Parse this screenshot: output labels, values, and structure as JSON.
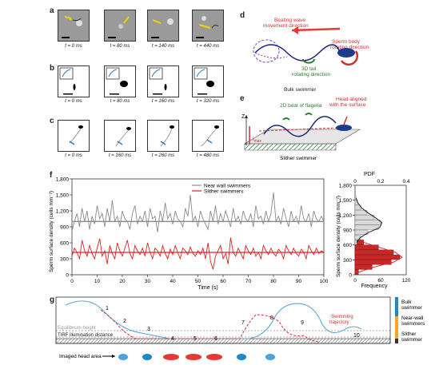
{
  "panels": {
    "a": "a",
    "b": "b",
    "c": "c",
    "d": "d",
    "e": "e",
    "f": "f",
    "g": "g"
  },
  "row_a": {
    "times": [
      "t = 0 ms",
      "t = 80 ms",
      "t = 140 ms",
      "t = 440 ms"
    ]
  },
  "row_b": {
    "times": [
      "t = 0 ms",
      "t = 80 ms",
      "t = 160 ms",
      "t = 320 ms"
    ]
  },
  "row_c": {
    "times": [
      "t = 0 ms",
      "t = 160 ms",
      "t = 260 ms",
      "t = 480 ms"
    ]
  },
  "panel_d": {
    "beating_wave": [
      "Beating wave",
      "movement direction"
    ],
    "body_rot": [
      "Sperm body",
      "rotating direction"
    ],
    "tail_rot": [
      "3D tail",
      "rotating direction"
    ]
  },
  "panel_e": {
    "bulk": "Bulk swimmer",
    "beat": "2D beat of flagella",
    "head_aligned": [
      "Head aligned",
      "with the surface"
    ],
    "slither": "Slither swimmer",
    "z_axis": "Z",
    "lmax": "l",
    "lmax_sub": "max"
  },
  "panel_g": {
    "equilibrium": "Equilibrium height",
    "tirf": "TIRF illumination distance",
    "imaged_head": "Imaged head area",
    "trajectory": [
      "Swimming",
      "trajectory"
    ],
    "numbers": [
      "1",
      "2",
      "3",
      "4",
      "5",
      "6",
      "7",
      "8",
      "9",
      "10"
    ],
    "legend": {
      "bulk": [
        "Bulk",
        "swimmer"
      ],
      "near": [
        "Near-wall",
        "swimmers"
      ],
      "slither": [
        "Slither",
        "swimmer"
      ]
    },
    "colors": {
      "bulk": "#4ea3d9",
      "near": "#1e88c9",
      "slither": "#e53935",
      "legend_orange": "#f5a623"
    }
  },
  "chart_data": [
    {
      "type": "line",
      "ylabel": "Sperm surface density (cells mm⁻²)",
      "xlabel": "Time (s)",
      "xlim": [
        0,
        100
      ],
      "ylim": [
        0,
        1800
      ],
      "xticks": [
        0,
        10,
        20,
        30,
        40,
        50,
        60,
        70,
        80,
        90,
        100
      ],
      "yticks": [
        0,
        300,
        600,
        900,
        1200,
        1500,
        1800
      ],
      "yticklabels": [
        "0",
        "300",
        "600",
        "900",
        "1,200",
        "1,500",
        "1,800"
      ],
      "series": [
        {
          "name": "Near wall swimmers",
          "color": "#8a8a8a",
          "mean": 1000,
          "values": [
            820,
            1000,
            1150,
            900,
            1250,
            1000,
            1200,
            850,
            1100,
            950,
            1300,
            1050,
            1150,
            900,
            1250,
            1000,
            1400,
            1000,
            1100,
            900,
            1200,
            1050,
            1000,
            850,
            1150,
            1300,
            950,
            1100,
            1000,
            1200,
            900,
            1250,
            1050,
            1100,
            800,
            1200,
            1000,
            1350,
            1050,
            1150,
            950,
            1200,
            1050,
            1000,
            900,
            1250,
            1100,
            1500,
            1000,
            1100,
            900,
            1200,
            1050,
            950,
            850,
            1200,
            1000,
            1300,
            950,
            1150,
            1000,
            1200,
            1050,
            900,
            1250,
            1000,
            1100,
            950,
            1200,
            1050,
            1000,
            1150,
            900,
            1300,
            1050,
            1100,
            950,
            1200,
            1000,
            1150,
            1550,
            1000,
            1100,
            950,
            1250,
            1050,
            900,
            1200,
            1000,
            1100,
            950,
            1300,
            1050,
            1000,
            1150,
            900,
            1200,
            1050,
            1000,
            1100,
            1000
          ]
        },
        {
          "name": "Slither swimmers",
          "color": "#e02020",
          "mean": 420,
          "values": [
            350,
            500,
            420,
            300,
            650,
            450,
            350,
            550,
            400,
            300,
            500,
            680,
            350,
            450,
            200,
            550,
            400,
            300,
            600,
            450,
            350,
            500,
            650,
            400,
            300,
            550,
            450,
            380,
            500,
            350,
            600,
            420,
            300,
            500,
            450,
            350,
            550,
            400,
            300,
            480,
            380,
            550,
            420,
            300,
            500,
            450,
            380,
            520,
            400,
            350,
            450,
            380,
            500,
            300,
            600,
            250,
            100,
            350,
            450,
            550,
            300,
            400,
            200,
            700,
            420,
            350,
            500,
            400,
            300,
            550,
            450,
            380,
            500,
            350,
            420,
            300,
            550,
            450,
            380,
            500,
            400,
            350,
            480,
            420,
            300,
            550,
            450,
            380,
            500,
            400,
            350,
            480,
            420,
            300,
            550,
            450,
            380,
            500,
            400,
            450,
            420
          ]
        }
      ]
    },
    {
      "type": "bar",
      "orientation": "horizontal",
      "xlabel": "Frequency",
      "top_label": "PDF",
      "ylabel": "Sperm surface density (cells mm⁻²)",
      "ylim": [
        0,
        1800
      ],
      "xlim": [
        0,
        120
      ],
      "xticks": [
        0,
        60,
        120
      ],
      "pdf_ticks": [
        "0",
        "0.2",
        "0.4"
      ],
      "bin_width": 100,
      "series": [
        {
          "name": "Slither swimmers",
          "color": "#e02020",
          "bins": [
            0,
            100,
            200,
            300,
            400,
            500,
            600,
            700
          ],
          "freq": [
            8,
            40,
            85,
            105,
            90,
            55,
            20,
            6
          ]
        },
        {
          "name": "Near wall swimmers",
          "color": "#8a8a8a",
          "bins": [
            600,
            700,
            800,
            900,
            1000,
            1100,
            1200,
            1300,
            1400,
            1500
          ],
          "freq": [
            4,
            12,
            30,
            55,
            60,
            45,
            28,
            14,
            6,
            2
          ]
        }
      ]
    }
  ]
}
